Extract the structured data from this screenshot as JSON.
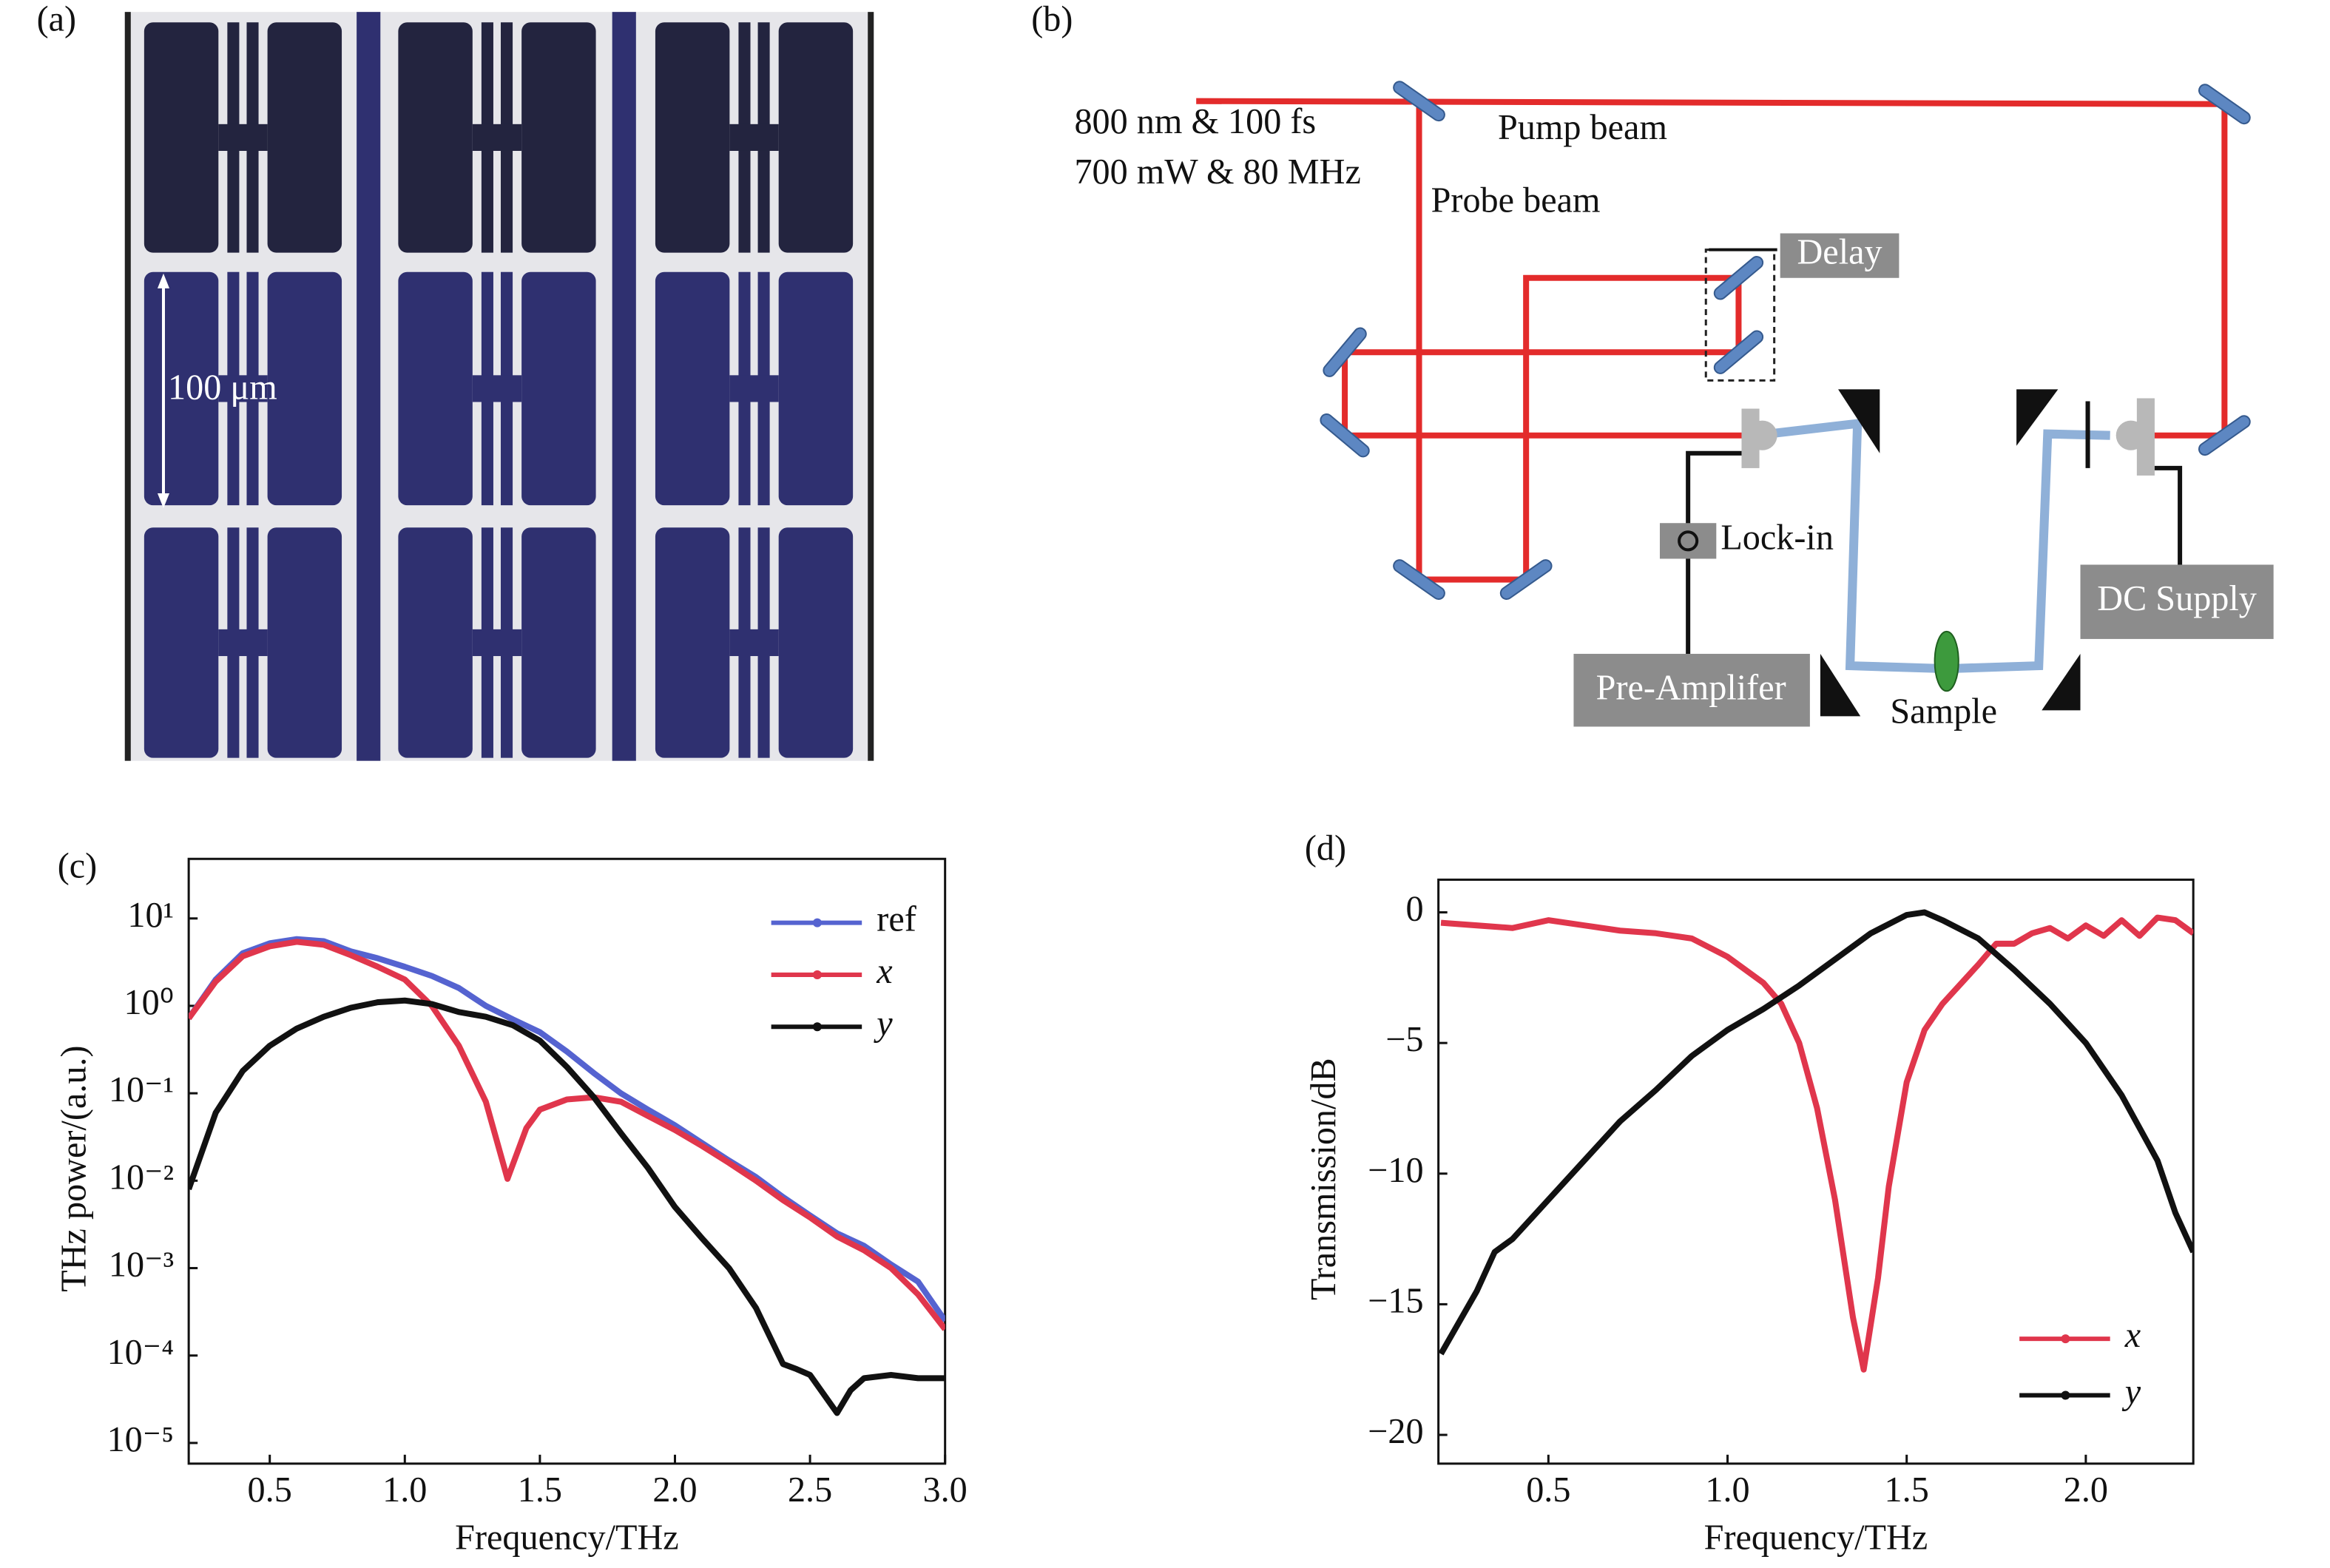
{
  "panels": {
    "a": "(a)",
    "b": "(b)",
    "c": "(c)",
    "d": "(d)"
  },
  "micrograph": {
    "scale_label": "100 μm"
  },
  "setup": {
    "laser_line_1": "800 nm & 100 fs",
    "laser_line_2": "700 mW & 80 MHz",
    "pump": "Pump beam",
    "probe": "Probe beam",
    "delay": "Delay",
    "lockin": "Lock-in",
    "dc": "DC Supply",
    "preamp": "Pre-Amplifer",
    "sample": "Sample"
  },
  "chart_data": [
    {
      "type": "line",
      "xlabel": "Frequency/THz",
      "ylabel": "THz power/(a.u.)",
      "log_y": true,
      "legend": "upper right",
      "xlim": [
        0.2,
        3.0
      ],
      "ylim": [
        5.8e-06,
        48
      ],
      "xticks": [
        0.5,
        {
          "value": 1,
          "label": "1.0"
        },
        1.5,
        {
          "value": 2,
          "label": "2.0"
        },
        2.5,
        {
          "value": 3,
          "label": "3.0"
        }
      ],
      "yticks": [
        {
          "value": 10,
          "label": "10¹"
        },
        {
          "value": 1,
          "label": "10⁰"
        },
        {
          "value": 0.1,
          "label": "10⁻¹"
        },
        {
          "value": 0.01,
          "label": "10⁻²"
        },
        {
          "value": 0.001,
          "label": "10⁻³"
        },
        {
          "value": 0.0001,
          "label": "10⁻⁴"
        },
        {
          "value": 1e-05,
          "label": "10⁻⁵"
        }
      ],
      "series": [
        {
          "name": "ref",
          "color": "#5563d0",
          "italic": false,
          "x": [
            0.2,
            0.3,
            0.4,
            0.5,
            0.6,
            0.7,
            0.8,
            0.9,
            1.0,
            1.1,
            1.2,
            1.3,
            1.4,
            1.5,
            1.6,
            1.7,
            1.8,
            1.9,
            2.0,
            2.1,
            2.2,
            2.3,
            2.4,
            2.5,
            2.6,
            2.7,
            2.8,
            2.9,
            3.0
          ],
          "values": [
            0.72,
            2.0,
            4.0,
            5.2,
            5.8,
            5.5,
            4.2,
            3.5,
            2.8,
            2.2,
            1.6,
            1.0,
            0.7,
            0.5,
            0.3,
            0.17,
            0.1,
            0.065,
            0.043,
            0.027,
            0.017,
            0.011,
            0.0065,
            0.004,
            0.0025,
            0.0018,
            0.0011,
            0.0007,
            0.00025
          ]
        },
        {
          "name": "x",
          "color": "#e0364c",
          "italic": true,
          "x": [
            0.2,
            0.3,
            0.4,
            0.5,
            0.6,
            0.7,
            0.8,
            0.9,
            1.0,
            1.1,
            1.2,
            1.3,
            1.38,
            1.45,
            1.5,
            1.6,
            1.7,
            1.8,
            1.9,
            2.0,
            2.1,
            2.2,
            2.3,
            2.4,
            2.5,
            2.6,
            2.7,
            2.8,
            2.9,
            3.0
          ],
          "values": [
            0.72,
            1.9,
            3.7,
            4.8,
            5.4,
            5.0,
            3.8,
            2.8,
            2.0,
            1.0,
            0.35,
            0.08,
            0.0105,
            0.04,
            0.065,
            0.085,
            0.09,
            0.08,
            0.055,
            0.038,
            0.025,
            0.016,
            0.01,
            0.006,
            0.0038,
            0.0023,
            0.0016,
            0.001,
            0.0005,
            0.0002
          ]
        },
        {
          "name": "y",
          "color": "#111111",
          "italic": true,
          "x": [
            0.2,
            0.3,
            0.4,
            0.5,
            0.6,
            0.7,
            0.8,
            0.9,
            1.0,
            1.1,
            1.2,
            1.3,
            1.4,
            1.5,
            1.6,
            1.7,
            1.8,
            1.9,
            2.0,
            2.1,
            2.2,
            2.3,
            2.4,
            2.45,
            2.5,
            2.6,
            2.65,
            2.7,
            2.8,
            2.9,
            3.0
          ],
          "values": [
            0.008,
            0.06,
            0.18,
            0.35,
            0.55,
            0.75,
            0.95,
            1.1,
            1.15,
            1.05,
            0.85,
            0.75,
            0.6,
            0.4,
            0.2,
            0.09,
            0.035,
            0.014,
            0.005,
            0.0022,
            0.001,
            0.00035,
            8e-05,
            7e-05,
            6e-05,
            2.2e-05,
            4e-05,
            5.5e-05,
            6e-05,
            5.5e-05,
            5.5e-05
          ]
        }
      ]
    },
    {
      "type": "line",
      "xlabel": "Frequency/THz",
      "ylabel": "Transmission/dB",
      "log_y": false,
      "legend": "lower right",
      "xlim": [
        0.193,
        2.3
      ],
      "ylim": [
        -21.1,
        1.25
      ],
      "xticks": [
        0.5,
        {
          "value": 1,
          "label": "1.0"
        },
        1.5,
        {
          "value": 2,
          "label": "2.0"
        }
      ],
      "yticks": [
        0,
        {
          "value": -5,
          "label": "−5"
        },
        {
          "value": -10,
          "label": "−10"
        },
        {
          "value": -15,
          "label": "−15"
        },
        {
          "value": -20,
          "label": "−20"
        }
      ],
      "series": [
        {
          "name": "x",
          "color": "#e0364c",
          "italic": true,
          "x": [
            0.2,
            0.3,
            0.4,
            0.5,
            0.6,
            0.7,
            0.8,
            0.9,
            1.0,
            1.1,
            1.15,
            1.2,
            1.25,
            1.3,
            1.35,
            1.38,
            1.42,
            1.45,
            1.5,
            1.55,
            1.6,
            1.7,
            1.75,
            1.8,
            1.85,
            1.9,
            1.95,
            2.0,
            2.05,
            2.1,
            2.15,
            2.2,
            2.25,
            2.3
          ],
          "values": [
            -0.4,
            -0.5,
            -0.6,
            -0.3,
            -0.5,
            -0.7,
            -0.8,
            -1.0,
            -1.7,
            -2.7,
            -3.5,
            -5,
            -7.5,
            -11,
            -15.5,
            -17.5,
            -14,
            -10.5,
            -6.5,
            -4.5,
            -3.5,
            -2,
            -1.2,
            -1.2,
            -0.8,
            -0.6,
            -1.0,
            -0.5,
            -0.9,
            -0.3,
            -0.9,
            -0.2,
            -0.3,
            -0.8
          ]
        },
        {
          "name": "y",
          "color": "#111111",
          "italic": true,
          "x": [
            0.2,
            0.3,
            0.35,
            0.4,
            0.5,
            0.6,
            0.7,
            0.8,
            0.9,
            1.0,
            1.1,
            1.2,
            1.3,
            1.4,
            1.5,
            1.55,
            1.6,
            1.7,
            1.8,
            1.9,
            2.0,
            2.1,
            2.2,
            2.25,
            2.3
          ],
          "values": [
            -16.9,
            -14.5,
            -13,
            -12.5,
            -11,
            -9.5,
            -8,
            -6.8,
            -5.5,
            -4.5,
            -3.7,
            -2.8,
            -1.8,
            -0.8,
            -0.1,
            0,
            -0.3,
            -1,
            -2.2,
            -3.5,
            -5,
            -7,
            -9.5,
            -11.5,
            -13
          ]
        }
      ]
    }
  ]
}
